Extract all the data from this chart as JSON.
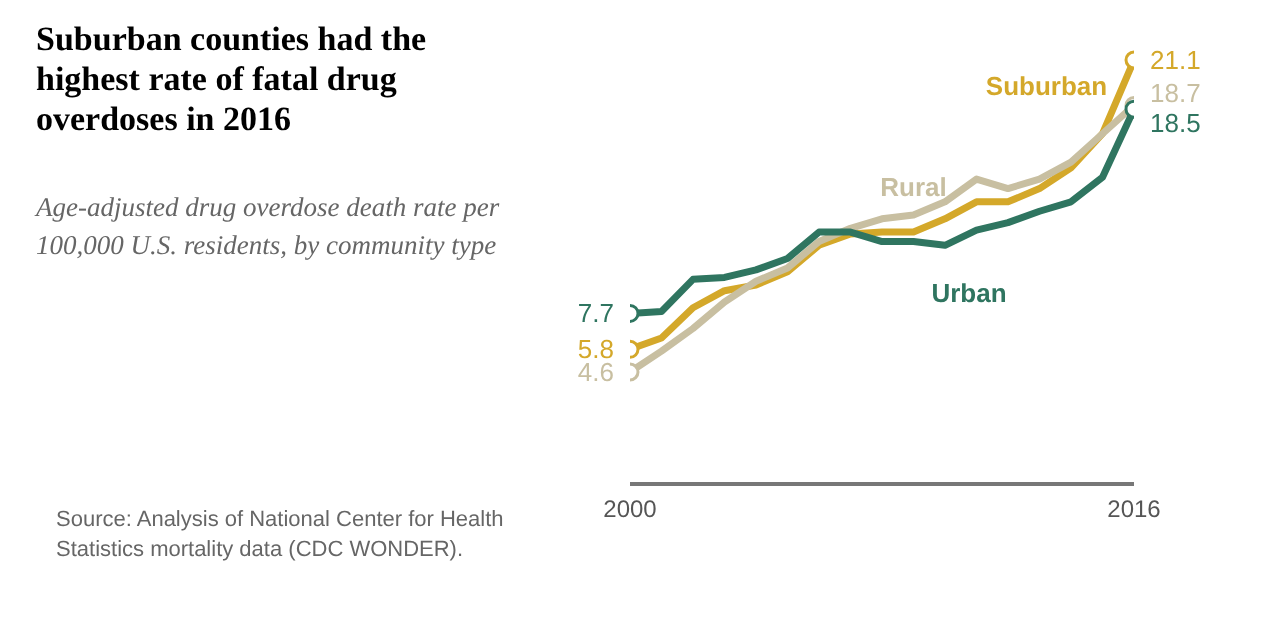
{
  "chart_data": {
    "type": "line",
    "title": "Suburban counties had the highest rate of fatal drug overdoses in 2016",
    "subtitle": "Age-adjusted drug overdose death rate per 100,000 U.S. residents, by community type",
    "annotations": [
      "Source: Analysis of National Center for Health Statistics mortality data (CDC WONDER)."
    ],
    "x": [
      2000,
      2001,
      2002,
      2003,
      2004,
      2005,
      2006,
      2007,
      2008,
      2009,
      2010,
      2011,
      2012,
      2013,
      2014,
      2015,
      2016
    ],
    "xlim": [
      2000,
      2016
    ],
    "xticks": [
      2000,
      2016
    ],
    "tick_labels": "x",
    "line_style": "solid",
    "series": [
      {
        "name": "Suburban",
        "color": "#d4a82a",
        "values": [
          5.8,
          6.4,
          8.0,
          8.9,
          9.2,
          9.9,
          11.3,
          11.9,
          12.0,
          12.0,
          12.7,
          13.6,
          13.6,
          14.3,
          15.4,
          17.2,
          21.1
        ],
        "value_labels": [
          "5.8",
          null,
          null,
          null,
          null,
          null,
          null,
          null,
          null,
          null,
          null,
          null,
          null,
          null,
          null,
          null,
          "21.1"
        ]
      },
      {
        "name": "Rural",
        "color": "#c8bfa1",
        "values": [
          4.6,
          5.7,
          6.9,
          8.3,
          9.4,
          10.1,
          11.5,
          12.2,
          12.7,
          12.9,
          13.6,
          14.8,
          14.3,
          14.8,
          15.7,
          17.2,
          18.7
        ],
        "value_labels": [
          "4.6",
          null,
          null,
          null,
          null,
          null,
          null,
          null,
          null,
          null,
          null,
          null,
          null,
          null,
          null,
          null,
          "18.7"
        ]
      },
      {
        "name": "Urban",
        "color": "#2f7560",
        "values": [
          7.7,
          7.8,
          9.5,
          9.6,
          10.0,
          10.6,
          12.0,
          12.0,
          11.5,
          11.5,
          11.3,
          12.1,
          12.5,
          13.1,
          13.6,
          14.9,
          18.5
        ],
        "value_labels": [
          "7.7",
          null,
          null,
          null,
          null,
          null,
          null,
          null,
          null,
          null,
          null,
          null,
          null,
          null,
          null,
          null,
          "18.5"
        ]
      }
    ]
  }
}
